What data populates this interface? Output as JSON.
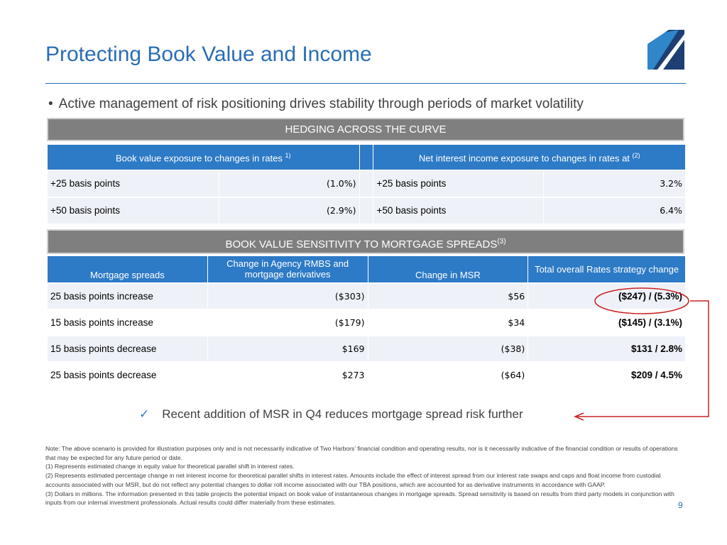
{
  "title": "Protecting Book Value and Income",
  "bullet": "Active management of risk positioning drives stability through periods of market volatility",
  "hedging_band": "HEDGING ACROSS THE CURVE",
  "table1": {
    "header_left": "Book value exposure to changes in rates",
    "header_left_sup": "1)",
    "header_right": "Net interest income exposure to changes in rates at",
    "header_right_sup": "(2)",
    "rows": [
      {
        "label_left": "+25 basis points",
        "value_left": "(1.0%)",
        "label_right": "+25 basis points",
        "value_right": "3.2%"
      },
      {
        "label_left": "+50 basis points",
        "value_left": "(2.9%)",
        "label_right": "+50 basis points",
        "value_right": "6.4%"
      }
    ]
  },
  "sensitivity_band": "BOOK VALUE SENSITIVITY TO MORTGAGE SPREADS",
  "sensitivity_band_sup": "(3)",
  "table2": {
    "headers": [
      "Mortgage spreads",
      "Change in Agency RMBS and mortgage derivatives",
      "Change in MSR",
      "Total overall Rates strategy change"
    ],
    "rows": [
      {
        "label": "25 basis points increase",
        "rmbs": "($303)",
        "msr": "$56",
        "total": "($247) / (5.3%)"
      },
      {
        "label": "15 basis points increase",
        "rmbs": "($179)",
        "msr": "$34",
        "total": "($145) / (3.1%)"
      },
      {
        "label": "15 basis points decrease",
        "rmbs": "$169",
        "msr": "($38)",
        "total": "$131 / 2.8%"
      },
      {
        "label": "25 basis points decrease",
        "rmbs": "$273",
        "msr": "($64)",
        "total": "$209 / 4.5%"
      }
    ]
  },
  "checkmark_text": "Recent addition of MSR in Q4 reduces mortgage spread risk further",
  "notes": [
    "Note: The above scenario is provided for illustration purposes only and is not necessarily indicative of Two Harbors’ financial condition and operating results, nor is it necessarily indicative of the financial condition or results of operations that may be expected for any future period or date.",
    "(1) Represents estimated change in equity value for theoretical parallel shift in interest rates.",
    "(2) Represents estimated percentage change in net interest income for theoretical parallel shifts in interest rates. Amounts include the effect of interest spread from our interest rate swaps and caps and float income from custodial accounts associated with our MSR, but do not reflect any potential changes to dollar roll income associated with our TBA positions, which are accounted for as derivative instruments in accordance with GAAP.",
    "(3) Dollars in millions. The information presented in this table projects the potential impact on book value of instantaneous changes in mortgage spreads. Spread sensitivity is based on results from third party models in conjunction with inputs from our internal investment professionals. Actual results could differ materially from these estimates."
  ],
  "page_number": "9",
  "colors": {
    "accent": "#2a6db5",
    "header_fill": "#2d7ac6",
    "band_fill": "#7f7f7f",
    "annotation": "#cc2222"
  }
}
